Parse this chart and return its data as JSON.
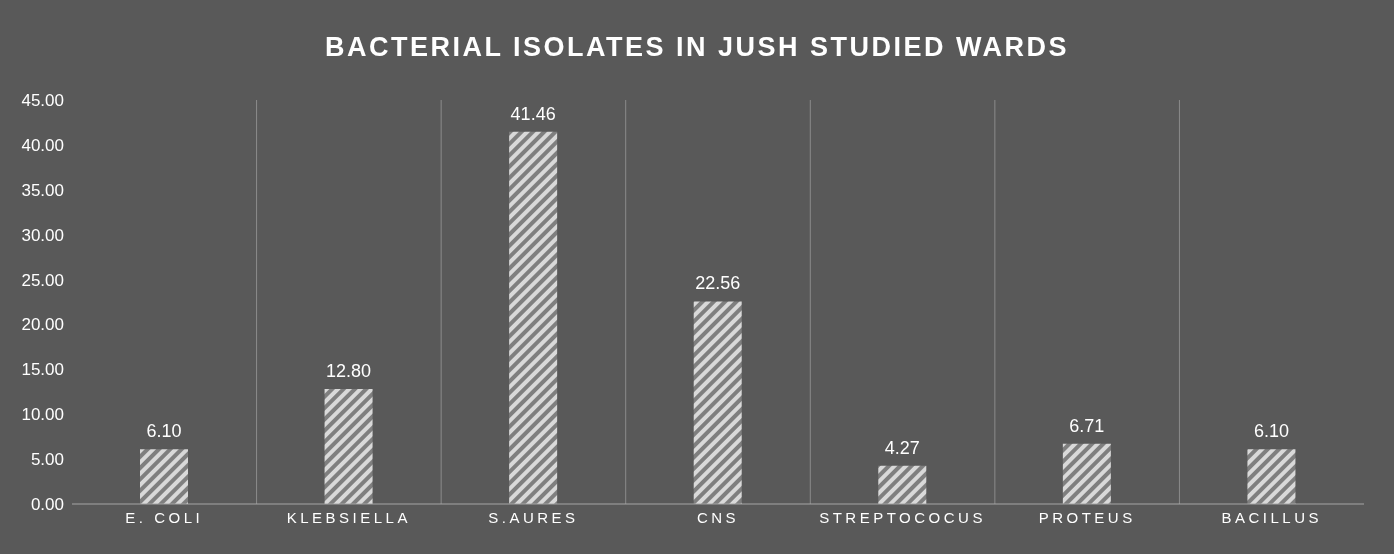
{
  "chart_data": {
    "type": "bar",
    "title": "BACTERIAL ISOLATES IN JUSH STUDIED WARDS",
    "categories": [
      "E. COLI",
      "KLEBSIELLA",
      "S.AURES",
      "CNS",
      "STREPTOCOCUS",
      "PROTEUS",
      "BACILLUS"
    ],
    "values": [
      6.1,
      12.8,
      41.46,
      22.56,
      4.27,
      6.71,
      6.1
    ],
    "value_labels": [
      "6.10",
      "12.80",
      "41.46",
      "22.56",
      "4.27",
      "6.71",
      "6.10"
    ],
    "color": "#d9d9d9",
    "ylim": [
      0,
      45
    ],
    "yticks": [
      {
        "value": 0,
        "label": "0.00"
      },
      {
        "value": 5,
        "label": "5.00"
      },
      {
        "value": 10,
        "label": "10.00"
      },
      {
        "value": 15,
        "label": "15.00"
      },
      {
        "value": 20,
        "label": "20.00"
      },
      {
        "value": 25,
        "label": "25.00"
      },
      {
        "value": 30,
        "label": "30.00"
      },
      {
        "value": 35,
        "label": "35.00"
      },
      {
        "value": 40,
        "label": "40.00"
      },
      {
        "value": 45,
        "label": "45.00"
      }
    ],
    "grid": "x"
  }
}
